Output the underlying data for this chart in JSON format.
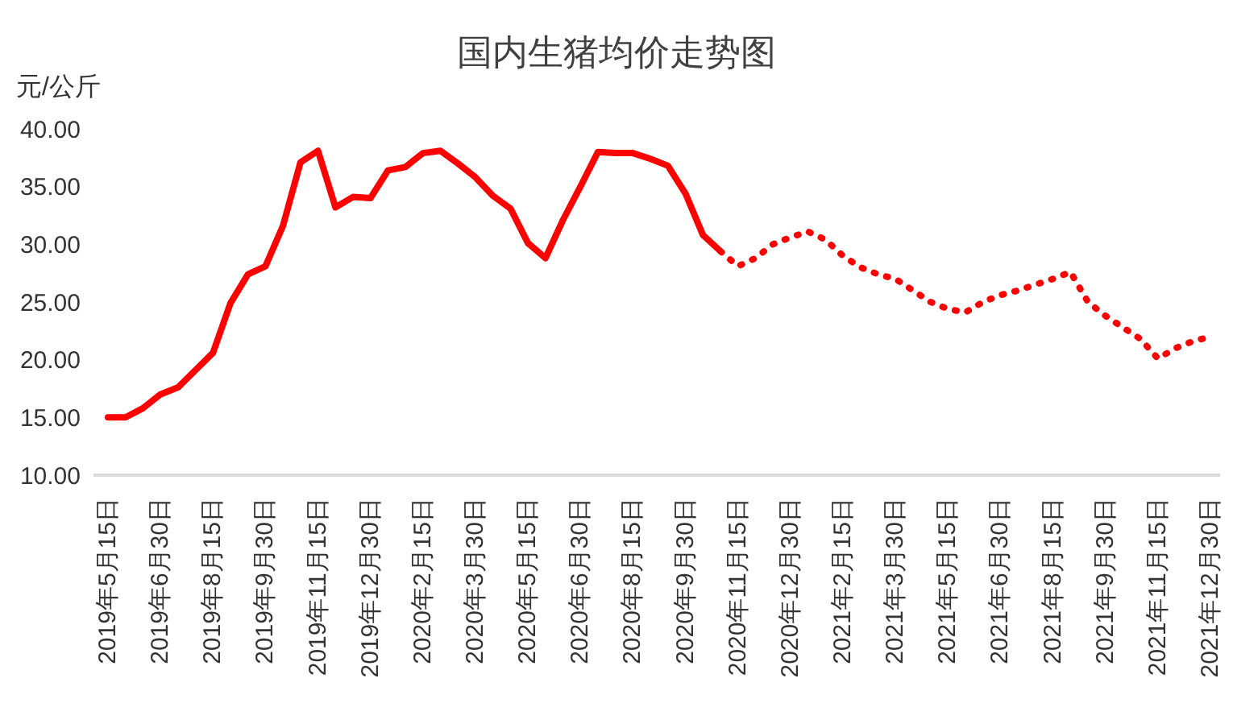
{
  "chart_data": {
    "type": "line",
    "title": "国内生猪均价走势图",
    "ylabel": "元/公斤",
    "categories": [
      "2019年5月15日",
      null,
      null,
      "2019年6月30日",
      null,
      null,
      "2019年8月15日",
      null,
      null,
      "2019年9月30日",
      null,
      null,
      "2019年11月15日",
      null,
      null,
      "2019年12月30日",
      null,
      null,
      "2020年2月15日",
      null,
      null,
      "2020年3月30日",
      null,
      null,
      "2020年5月15日",
      null,
      null,
      "2020年6月30日",
      null,
      null,
      "2020年8月15日",
      null,
      null,
      "2020年9月30日",
      null,
      null,
      "2020年11月15日",
      null,
      null,
      "2020年12月30日",
      null,
      null,
      "2021年2月15日",
      null,
      null,
      "2021年3月30日",
      null,
      null,
      "2021年5月15日",
      null,
      null,
      "2021年6月30日",
      null,
      null,
      "2021年8月15日",
      null,
      null,
      "2021年9月30日",
      null,
      null,
      "2021年11月15日",
      null,
      null,
      "2021年12月30日"
    ],
    "series": [
      {
        "color": "#ff0000",
        "line_style": "solid",
        "values": [
          15.0,
          15.0,
          15.8,
          17.0,
          17.6,
          19.1,
          20.6,
          24.9,
          27.4,
          28.1,
          31.6,
          37.1,
          38.1,
          33.2,
          34.1,
          34.0,
          36.4,
          36.7,
          37.9,
          38.1,
          37.0,
          35.8,
          34.2,
          33.1,
          30.1,
          28.8,
          32.1,
          35.0,
          38.0,
          37.9,
          37.9,
          37.4,
          36.8,
          34.4,
          30.8,
          29.4,
          null,
          null,
          null,
          null,
          null,
          null,
          null,
          null,
          null,
          null,
          null,
          null,
          null,
          null,
          null,
          null,
          null,
          null,
          null,
          null,
          null,
          null,
          null,
          null,
          null,
          null,
          null,
          null
        ]
      },
      {
        "color": "#ff0000",
        "line_style": "dotted",
        "values": [
          null,
          null,
          null,
          null,
          null,
          null,
          null,
          null,
          null,
          null,
          null,
          null,
          null,
          null,
          null,
          null,
          null,
          null,
          null,
          null,
          null,
          null,
          null,
          null,
          null,
          null,
          null,
          null,
          null,
          null,
          null,
          null,
          null,
          null,
          null,
          29.4,
          28.1,
          28.8,
          30.0,
          30.6,
          31.1,
          30.4,
          29.0,
          28.0,
          27.4,
          27.0,
          26.0,
          25.0,
          24.4,
          24.1,
          25.0,
          25.6,
          26.0,
          26.5,
          27.0,
          27.6,
          25.0,
          23.8,
          22.8,
          21.8,
          20.1,
          21.0,
          21.6,
          22.0
        ]
      }
    ],
    "ylim": [
      10,
      40
    ],
    "yticks": [
      {
        "value": 10,
        "label": "10.00"
      },
      {
        "value": 15,
        "label": "15.00"
      },
      {
        "value": 20,
        "label": "20.00"
      },
      {
        "value": 25,
        "label": "25.00"
      },
      {
        "value": 30,
        "label": "30.00"
      },
      {
        "value": 35,
        "label": "35.00"
      },
      {
        "value": 40,
        "label": "40.00"
      }
    ],
    "marker": "none",
    "grid": false
  }
}
